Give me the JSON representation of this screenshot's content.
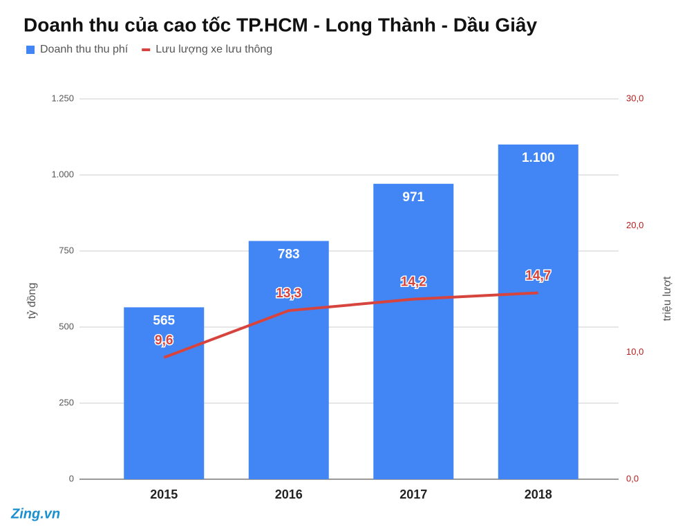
{
  "chart_data": {
    "type": "bar",
    "title": "Doanh thu của cao tốc TP.HCM - Long Thành - Dầu Giây",
    "categories": [
      "2015",
      "2016",
      "2017",
      "2018"
    ],
    "series": [
      {
        "name": "Doanh thu thu phí",
        "type": "bar",
        "color": "#4285f4",
        "values": [
          565,
          783,
          971,
          1100
        ],
        "value_labels": [
          "565",
          "783",
          "971",
          "1.100"
        ]
      },
      {
        "name": "Lưu lượng xe lưu thông",
        "type": "line",
        "axis": "y2",
        "color": "#d7443e",
        "values": [
          9.6,
          13.3,
          14.2,
          14.7
        ],
        "value_labels": [
          "9,6",
          "13,3",
          "14,2",
          "14,7"
        ]
      }
    ],
    "ylabel": "tỷ đồng",
    "y2label": "triệu lượt",
    "ylim": [
      0,
      1250
    ],
    "yticks": [
      0,
      250,
      500,
      750,
      {
        "value": 1000,
        "label": "1.000"
      },
      {
        "value": 1250,
        "label": "1.250"
      }
    ],
    "y2lim": [
      0,
      30
    ],
    "y2ticks": [
      {
        "value": 0,
        "label": "0,0"
      },
      {
        "value": 10,
        "label": "10,0"
      },
      {
        "value": 20,
        "label": "20,0"
      },
      {
        "value": 30,
        "label": "30,0"
      }
    ],
    "grid": true,
    "legend": "top-left",
    "watermark": "Zing.vn"
  }
}
